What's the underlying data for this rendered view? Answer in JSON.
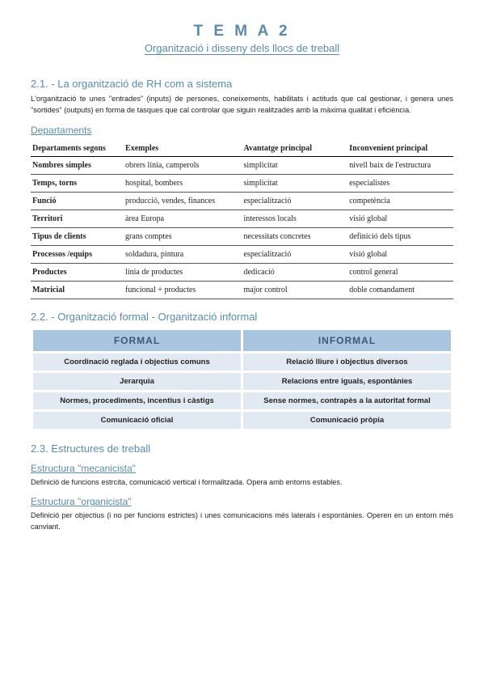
{
  "title": "T E M A 2",
  "subtitle": "Organització i disseny dels llocs de treball",
  "section21": {
    "heading": "2.1. - La organització de RH com a sistema",
    "body": "L'organització te unes \"entrades\" (inputs) de persones, coneixements, habilitats i actituds que cal gestionar, i genera unes \"sortides\" (outputs) en forma de tasques que cal controlar que siguin realitzades amb la màxima qualitat i eficiència.",
    "departaments_label": "Departaments",
    "table_headers": [
      "Departaments segons",
      "Exemples",
      "Avantatge principal",
      "Inconvenient principal"
    ],
    "rows": [
      [
        "Nombres simples",
        "obrers línia, camperols",
        "simplicitat",
        "nivell baix de l'estructura"
      ],
      [
        "Temps, torns",
        "hospital, bombers",
        "simplicitat",
        "especialistes"
      ],
      [
        "Funció",
        "producció, vendes, finances",
        "especialització",
        "competència"
      ],
      [
        "Territori",
        "àrea Europa",
        "interessos locals",
        "visió global"
      ],
      [
        "Tipus de clients",
        "grans comptes",
        "necessitats concretes",
        "definició dels tipus"
      ],
      [
        "Processos /equips",
        "soldadura, pintura",
        "especialització",
        "visió global"
      ],
      [
        "Productes",
        "línia de productes",
        "dedicació",
        "control general"
      ],
      [
        "Matricial",
        "funcional + productes",
        "major control",
        "doble comandament"
      ]
    ]
  },
  "section22": {
    "heading": "2.2. - Organització formal - Organització informal",
    "col_formal": "FORMAL",
    "col_informal": "INFORMAL",
    "rows": [
      [
        "Coordinació reglada i objectius comuns",
        "Relació lliure i objectius diversos"
      ],
      [
        "Jerarquia",
        "Relacions entre iguals, espontànies"
      ],
      [
        "Normes, procediments, incentius i càstigs",
        "Sense normes, contrapès a la autoritat formal"
      ],
      [
        "Comunicació oficial",
        "Comunicació pròpia"
      ]
    ]
  },
  "section23": {
    "heading": "2.3. Estructures de treball",
    "mec_heading": "Estructura \"mecanicista\"",
    "mec_body": "Definició de funcions estrcita, comunicació vertical i formalitzada. Opera amb entorns estables.",
    "org_heading": "Estructura \"organicista\"",
    "org_body": "Definició per objectius (i no per funcions estrictes) i unes comunicacions més laterals i espontànies. Operen en un entorn més canviant."
  },
  "colors": {
    "accent": "#5b8ba8",
    "t2_header_bg": "#a9c5e0",
    "t2_cell_bg": "#e1eaf3"
  }
}
